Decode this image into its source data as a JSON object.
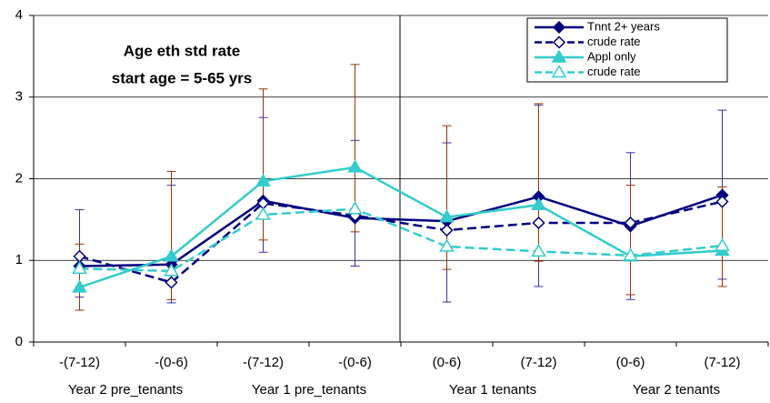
{
  "chart_data": {
    "type": "line",
    "annotations": [
      "Age eth std rate",
      "start age = 5-65 yrs"
    ],
    "categories": [
      "-(7-12)",
      "-(0-6)",
      "-(7-12)",
      "-(0-6)",
      "(0-6)",
      "(7-12)",
      "(0-6)",
      "(7-12)"
    ],
    "category_groups": [
      "Year 2 pre_tenants",
      "Year 1 pre_tenants",
      "Year 1 tenants",
      "Year 2 tenants"
    ],
    "ylim": [
      0,
      4
    ],
    "yticks": [
      0,
      1,
      2,
      3,
      4
    ],
    "grid": true,
    "legend": "top-right",
    "series": [
      {
        "name": "Tnnt 2+ years",
        "color": "#000080",
        "marker": "diamond",
        "filled": true,
        "dashed": false,
        "values": [
          0.93,
          0.95,
          1.73,
          1.52,
          1.48,
          1.78,
          1.42,
          1.8
        ],
        "lower": [
          0.55,
          0.48,
          1.1,
          0.93,
          0.49,
          0.68,
          0.52,
          0.77
        ],
        "upper": [
          1.62,
          1.92,
          2.75,
          2.47,
          2.44,
          2.9,
          2.32,
          2.84
        ],
        "error_color": "#3333aa"
      },
      {
        "name": "crude rate",
        "color": "#000080",
        "marker": "diamond",
        "filled": false,
        "dashed": true,
        "values": [
          1.05,
          0.73,
          1.7,
          1.55,
          1.37,
          1.46,
          1.46,
          1.72
        ]
      },
      {
        "name": "Appl only",
        "color": "#33cccc",
        "marker": "triangle",
        "filled": true,
        "dashed": false,
        "values": [
          0.67,
          1.05,
          1.97,
          2.14,
          1.53,
          1.68,
          1.05,
          1.12
        ],
        "lower": [
          0.39,
          0.52,
          1.25,
          1.35,
          0.89,
          0.99,
          0.58,
          0.68
        ],
        "upper": [
          1.2,
          2.09,
          3.1,
          3.4,
          2.65,
          2.92,
          1.92,
          1.9
        ],
        "error_color": "#993300"
      },
      {
        "name": "crude rate",
        "color": "#33cccc",
        "marker": "triangle",
        "filled": false,
        "dashed": true,
        "values": [
          0.9,
          0.87,
          1.56,
          1.63,
          1.17,
          1.11,
          1.06,
          1.18
        ]
      }
    ]
  }
}
